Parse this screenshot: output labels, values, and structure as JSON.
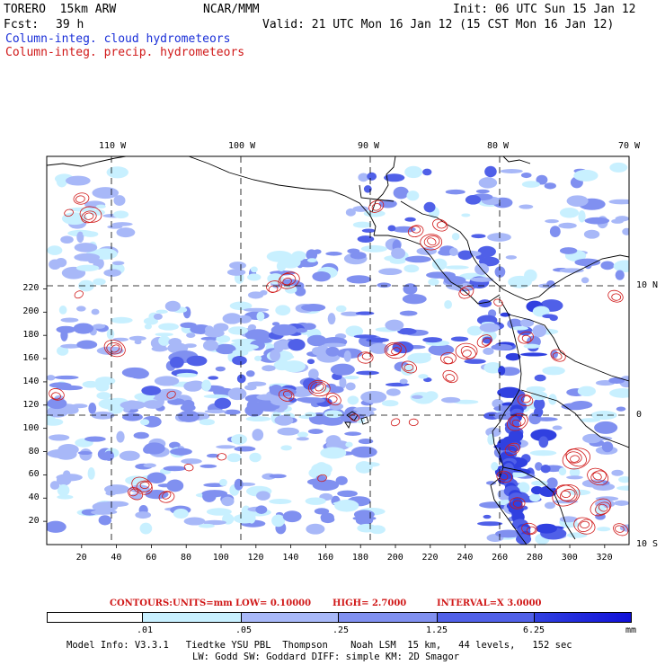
{
  "header": {
    "model": "TORERO  15km ARW",
    "org": "NCAR/MMM",
    "init": "Init: 06 UTC Sun 15 Jan 12",
    "fcst_label": "Fcst:",
    "fcst_value": "39 h",
    "valid": "Valid: 21 UTC Mon 16 Jan 12 (15 CST Mon 16 Jan 12)"
  },
  "legend": {
    "cloud": "Column-integ. cloud hydrometeors",
    "precip": "Column-integ. precip. hydrometeors"
  },
  "colors": {
    "cloud_shade_1": "#c8f0ff",
    "cloud_shade_2": "#a8b8f8",
    "cloud_shade_3": "#8090f0",
    "cloud_shade_4": "#5060e8",
    "cloud_shade_5": "#3040e0",
    "cloud_shade_6": "#1010d8",
    "precip_contour": "#d01818",
    "coastline": "#000000"
  },
  "axes": {
    "top_labels": [
      "110 W",
      "100 W",
      "90 W",
      "80 W",
      "70 W"
    ],
    "right_labels": [
      "10 N",
      "0",
      "10 S"
    ],
    "left_ticks": [
      "20",
      "40",
      "60",
      "80",
      "100",
      "120",
      "140",
      "160",
      "180",
      "200",
      "220"
    ],
    "bottom_ticks": [
      "20",
      "40",
      "60",
      "80",
      "100",
      "120",
      "140",
      "160",
      "180",
      "200",
      "220",
      "240",
      "260",
      "280",
      "300",
      "320"
    ],
    "grid_index_range": [
      0,
      334
    ]
  },
  "contour_info": {
    "label": "CONTOURS:",
    "units": "UNITS=mm",
    "low": "LOW= 0.10000",
    "high": "HIGH= 2.7000",
    "interval": "INTERVAL=X 3.0000"
  },
  "colorbar": {
    "levels": [
      ".01",
      ".05",
      ".25",
      "1.25",
      "6.25"
    ],
    "unit": "mm"
  },
  "model_info": {
    "line1": "Model Info: V3.3.1   Tiedtke YSU PBL  Thompson    Noah LSM  15 km,   44 levels,   152 sec",
    "line2": "LW: Godd SW: Goddard DIFF: simple KM: 2D Smagor"
  }
}
